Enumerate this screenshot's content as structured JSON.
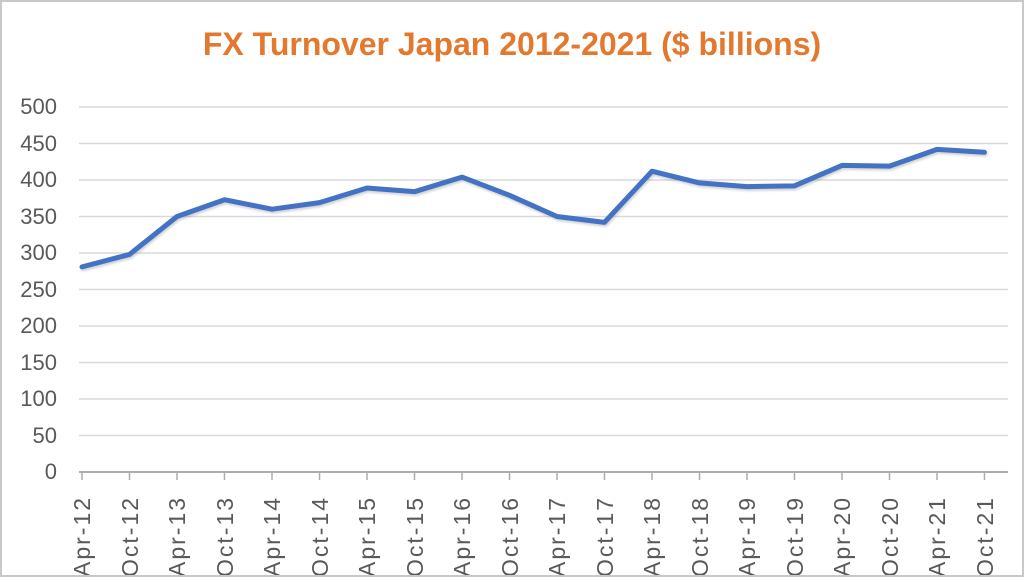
{
  "page": {
    "background": "#FFFFFF",
    "frame_border_color": "#C8C8C8"
  },
  "chart_data": {
    "type": "line",
    "title": "FX Turnover Japan 2012-2021 ($ billions)",
    "xlabel": "",
    "ylabel": "",
    "categories": [
      "Apr-12",
      "Oct-12",
      "Apr-13",
      "Oct-13",
      "Apr-14",
      "Oct-14",
      "Apr-15",
      "Oct-15",
      "Apr-16",
      "Oct-16",
      "Apr-17",
      "Oct-17",
      "Apr-18",
      "Oct-18",
      "Apr-19",
      "Oct-19",
      "Apr-20",
      "Oct-20",
      "Apr-21",
      "Oct-21"
    ],
    "values": [
      281,
      298,
      350,
      373,
      360,
      369,
      389,
      384,
      404,
      379,
      350,
      342,
      412,
      396,
      391,
      392,
      420,
      419,
      442,
      438
    ],
    "series_name": "FX Turnover",
    "ylim": [
      0,
      500
    ],
    "yticks": [
      0,
      50,
      100,
      150,
      200,
      250,
      300,
      350,
      400,
      450,
      500
    ],
    "grid": "horizontal",
    "legend_position": "none",
    "colors": {
      "line": "#4472C4",
      "title": "#E3792F",
      "axis_text": "#595959",
      "gridline": "#D9D9D9",
      "axis_line": "#ADADAD"
    }
  }
}
